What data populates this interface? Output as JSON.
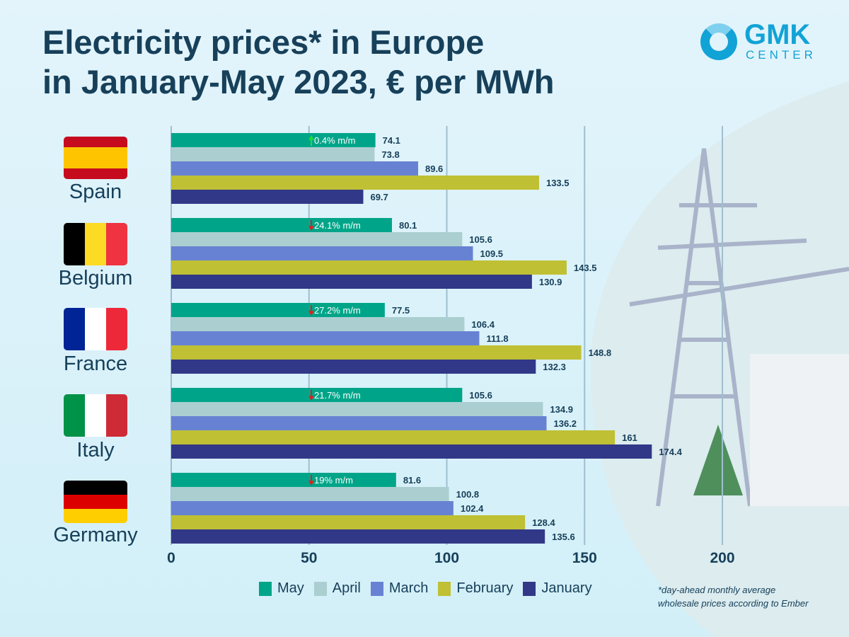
{
  "title": "Electricity prices* in Europe\nin January-May 2023, € per MWh",
  "logo": {
    "line1": "GMK",
    "line2": "CENTER",
    "color": "#12a3d6"
  },
  "note": "*day-ahead monthly average\nwholesale prices according to Ember",
  "chart_data": {
    "type": "bar",
    "orientation": "horizontal",
    "title": "Electricity prices* in Europe in January-May 2023, € per MWh",
    "xlim": [
      0,
      200
    ],
    "x_ticks": [
      0,
      50,
      100,
      150,
      200
    ],
    "grid": true,
    "legend_position": "bottom",
    "categories": [
      "Spain",
      "Belgium",
      "France",
      "Italy",
      "Germany"
    ],
    "series": [
      {
        "name": "May",
        "color": "#00a589",
        "values": [
          74.1,
          80.1,
          77.5,
          105.6,
          81.6
        ]
      },
      {
        "name": "April",
        "color": "#abcfd1",
        "values": [
          73.8,
          105.6,
          106.4,
          134.9,
          100.8
        ]
      },
      {
        "name": "March",
        "color": "#6882d3",
        "values": [
          89.6,
          109.5,
          111.8,
          136.2,
          102.4
        ]
      },
      {
        "name": "February",
        "color": "#bfc034",
        "values": [
          133.5,
          143.5,
          148.8,
          161,
          128.4
        ]
      },
      {
        "name": "January",
        "color": "#313887",
        "values": [
          69.7,
          130.9,
          132.3,
          174.4,
          135.6
        ]
      }
    ],
    "annotations": [
      {
        "country": "Spain",
        "text": "0.4% m/m",
        "direction": "up"
      },
      {
        "country": "Belgium",
        "text": "24.1% m/m",
        "direction": "down"
      },
      {
        "country": "France",
        "text": "27.2% m/m",
        "direction": "down"
      },
      {
        "country": "Italy",
        "text": "21.7% m/m",
        "direction": "down"
      },
      {
        "country": "Germany",
        "text": "19% m/m",
        "direction": "down"
      }
    ]
  }
}
